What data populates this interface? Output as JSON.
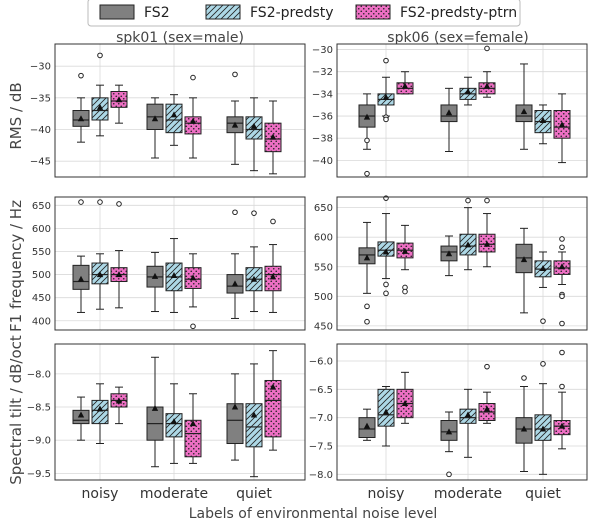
{
  "chart_data": {
    "type": "box",
    "legend": {
      "placement": "top",
      "entries": [
        {
          "name": "FS2",
          "color": "#808080",
          "hatch": "none"
        },
        {
          "name": "FS2-predsty",
          "color": "#add8e6",
          "hatch": "diagonal"
        },
        {
          "name": "FS2-predsty-ptrn",
          "color": "#ee6fc4",
          "hatch": "dots"
        }
      ]
    },
    "column_titles": [
      "spk01 (sex=male)",
      "spk06 (sex=female)"
    ],
    "row_ylabels": [
      "RMS / dB",
      "F1 frequency / Hz",
      "Spectral tilt / dB/oct"
    ],
    "categories": [
      "noisy",
      "moderate",
      "quiet"
    ],
    "xlabel": "Labels of environmental noise level",
    "grid": true,
    "panels": [
      {
        "row": 0,
        "col": 0,
        "ylim": [
          -47.5,
          -26.5
        ],
        "yticks": [
          -45,
          -40,
          -35,
          -30
        ],
        "ytick_labels": [
          "−45",
          "−40",
          "−35",
          "−30"
        ],
        "boxes": [
          [
            {
              "wlo": -42,
              "q1": -39.5,
              "med": -38.5,
              "q3": -37,
              "whi": -35,
              "mean": -38.3,
              "fliers": [
                -31.5
              ]
            },
            {
              "wlo": -41,
              "q1": -38.5,
              "med": -37,
              "q3": -35,
              "whi": -33,
              "mean": -36.5,
              "fliers": [
                -28.3
              ]
            },
            {
              "wlo": -39,
              "q1": -36.5,
              "med": -35.5,
              "q3": -34,
              "whi": -33,
              "mean": -35.3,
              "fliers": []
            }
          ],
          [
            {
              "wlo": -44.5,
              "q1": -40,
              "med": -38,
              "q3": -36,
              "whi": -35,
              "mean": -38.3,
              "fliers": []
            },
            {
              "wlo": -42.5,
              "q1": -40.5,
              "med": -38.5,
              "q3": -36,
              "whi": -34.5,
              "mean": -37.7,
              "fliers": []
            },
            {
              "wlo": -44.5,
              "q1": -40.7,
              "med": -39,
              "q3": -38,
              "whi": -35,
              "mean": -38.7,
              "fliers": [
                -31.8
              ]
            }
          ],
          [
            {
              "wlo": -45.5,
              "q1": -40.5,
              "med": -39,
              "q3": -38,
              "whi": -35.5,
              "mean": -39.3,
              "fliers": [
                -31.3
              ]
            },
            {
              "wlo": -46.5,
              "q1": -41.5,
              "med": -40,
              "q3": -38,
              "whi": -35,
              "mean": -39.5,
              "fliers": []
            },
            {
              "wlo": -47,
              "q1": -43.5,
              "med": -41.5,
              "q3": -39,
              "whi": -35.5,
              "mean": -41.2,
              "fliers": []
            }
          ]
        ]
      },
      {
        "row": 0,
        "col": 1,
        "ylim": [
          -41.5,
          -29.5
        ],
        "yticks": [
          -40,
          -38,
          -36,
          -34,
          -32,
          -30
        ],
        "ytick_labels": [
          "−40",
          "−38",
          "−36",
          "−34",
          "−32",
          "−30"
        ],
        "boxes": [
          [
            {
              "wlo": -39,
              "q1": -37,
              "med": -36,
              "q3": -35,
              "whi": -34,
              "mean": -36.1,
              "fliers": [
                -38.2,
                -41.2
              ]
            },
            {
              "wlo": -36,
              "q1": -35,
              "med": -34.5,
              "q3": -34,
              "whi": -32.5,
              "mean": -34.3,
              "fliers": [
                -31,
                -36.1,
                -36.3
              ]
            },
            {
              "wlo": -34,
              "q1": -34,
              "med": -33.5,
              "q3": -33,
              "whi": -32,
              "mean": -33.3,
              "fliers": []
            }
          ],
          [
            {
              "wlo": -39.2,
              "q1": -36.5,
              "med": -36,
              "q3": -35,
              "whi": -33.5,
              "mean": -35.7,
              "fliers": []
            },
            {
              "wlo": -35,
              "q1": -34.5,
              "med": -34,
              "q3": -33.5,
              "whi": -32.5,
              "mean": -33.8,
              "fliers": []
            },
            {
              "wlo": -34.3,
              "q1": -34,
              "med": -33.5,
              "q3": -33,
              "whi": -32,
              "mean": -33.3,
              "fliers": [
                -29.9
              ]
            }
          ],
          [
            {
              "wlo": -39,
              "q1": -36.5,
              "med": -36,
              "q3": -35,
              "whi": -31.3,
              "mean": -35.6,
              "fliers": []
            },
            {
              "wlo": -38.5,
              "q1": -37.5,
              "med": -36.5,
              "q3": -35.5,
              "whi": -35,
              "mean": -36.4,
              "fliers": []
            },
            {
              "wlo": -40.2,
              "q1": -38,
              "med": -37,
              "q3": -35.5,
              "whi": -34,
              "mean": -36.8,
              "fliers": []
            }
          ]
        ]
      },
      {
        "row": 1,
        "col": 0,
        "ylim": [
          380,
          668
        ],
        "yticks": [
          400,
          450,
          500,
          550,
          600,
          650
        ],
        "ytick_labels": [
          "400",
          "450",
          "500",
          "550",
          "600",
          "650"
        ],
        "boxes": [
          [
            {
              "wlo": 418,
              "q1": 468,
              "med": 485,
              "q3": 520,
              "whi": 540,
              "mean": 490,
              "fliers": [
                657
              ]
            },
            {
              "wlo": 425,
              "q1": 480,
              "med": 500,
              "q3": 525,
              "whi": 545,
              "mean": 500,
              "fliers": [
                657
              ]
            },
            {
              "wlo": 428,
              "q1": 485,
              "med": 500,
              "q3": 515,
              "whi": 552,
              "mean": 500,
              "fliers": [
                653
              ]
            }
          ],
          [
            {
              "wlo": 420,
              "q1": 473,
              "med": 495,
              "q3": 518,
              "whi": 548,
              "mean": 496,
              "fliers": []
            },
            {
              "wlo": 418,
              "q1": 465,
              "med": 495,
              "q3": 525,
              "whi": 578,
              "mean": 498,
              "fliers": []
            },
            {
              "wlo": 430,
              "q1": 470,
              "med": 490,
              "q3": 515,
              "whi": 545,
              "mean": 493,
              "fliers": [
                388
              ]
            }
          ],
          [
            {
              "wlo": 405,
              "q1": 460,
              "med": 475,
              "q3": 500,
              "whi": 545,
              "mean": 480,
              "fliers": [
                635
              ]
            },
            {
              "wlo": 420,
              "q1": 465,
              "med": 490,
              "q3": 515,
              "whi": 560,
              "mean": 490,
              "fliers": [
                633
              ]
            },
            {
              "wlo": 418,
              "q1": 465,
              "med": 500,
              "q3": 518,
              "whi": 565,
              "mean": 495,
              "fliers": [
                615
              ]
            }
          ]
        ]
      },
      {
        "row": 1,
        "col": 1,
        "ylim": [
          443,
          668
        ],
        "yticks": [
          450,
          500,
          550,
          600,
          650
        ],
        "ytick_labels": [
          "450",
          "500",
          "550",
          "600",
          "650"
        ],
        "boxes": [
          [
            {
              "wlo": 505,
              "q1": 555,
              "med": 570,
              "q3": 582,
              "whi": 625,
              "mean": 565,
              "fliers": [
                483,
                457
              ]
            },
            {
              "wlo": 530,
              "q1": 568,
              "med": 578,
              "q3": 592,
              "whi": 640,
              "mean": 575,
              "fliers": [
                666,
                520,
                505
              ]
            },
            {
              "wlo": 545,
              "q1": 565,
              "med": 578,
              "q3": 590,
              "whi": 620,
              "mean": 576,
              "fliers": [
                515,
                508
              ]
            }
          ],
          [
            {
              "wlo": 535,
              "q1": 560,
              "med": 575,
              "q3": 585,
              "whi": 602,
              "mean": 572,
              "fliers": []
            },
            {
              "wlo": 545,
              "q1": 570,
              "med": 585,
              "q3": 605,
              "whi": 650,
              "mean": 587,
              "fliers": [
                662
              ]
            },
            {
              "wlo": 550,
              "q1": 575,
              "med": 588,
              "q3": 605,
              "whi": 640,
              "mean": 588,
              "fliers": [
                662
              ]
            }
          ],
          [
            {
              "wlo": 472,
              "q1": 540,
              "med": 565,
              "q3": 588,
              "whi": 615,
              "mean": 562,
              "fliers": []
            },
            {
              "wlo": 515,
              "q1": 533,
              "med": 546,
              "q3": 560,
              "whi": 575,
              "mean": 547,
              "fliers": [
                458
              ]
            },
            {
              "wlo": 520,
              "q1": 537,
              "med": 548,
              "q3": 560,
              "whi": 575,
              "mean": 550,
              "fliers": [
                597,
                583,
                503,
                500,
                454
              ]
            }
          ]
        ]
      },
      {
        "row": 2,
        "col": 0,
        "ylim": [
          -9.6,
          -7.55
        ],
        "yticks": [
          -9.5,
          -9.0,
          -8.5,
          -8.0
        ],
        "ytick_labels": [
          "−9.5",
          "−9.0",
          "−8.5",
          "−8.0"
        ],
        "boxes": [
          [
            {
              "wlo": -9.0,
              "q1": -8.75,
              "med": -8.7,
              "q3": -8.55,
              "whi": -8.35,
              "mean": -8.62,
              "fliers": []
            },
            {
              "wlo": -9.05,
              "q1": -8.75,
              "med": -8.55,
              "q3": -8.4,
              "whi": -8.15,
              "mean": -8.53,
              "fliers": []
            },
            {
              "wlo": -8.75,
              "q1": -8.5,
              "med": -8.4,
              "q3": -8.3,
              "whi": -8.2,
              "mean": -8.41,
              "fliers": []
            }
          ],
          [
            {
              "wlo": -9.4,
              "q1": -9.0,
              "med": -8.75,
              "q3": -8.5,
              "whi": -7.75,
              "mean": -8.52,
              "fliers": []
            },
            {
              "wlo": -9.35,
              "q1": -8.95,
              "med": -8.75,
              "q3": -8.6,
              "whi": -8.15,
              "mean": -8.72,
              "fliers": []
            },
            {
              "wlo": -9.35,
              "q1": -9.25,
              "med": -8.9,
              "q3": -8.7,
              "whi": -8.3,
              "mean": -8.75,
              "fliers": []
            }
          ],
          [
            {
              "wlo": -9.3,
              "q1": -9.05,
              "med": -8.7,
              "q3": -8.45,
              "whi": -8.0,
              "mean": -8.5,
              "fliers": []
            },
            {
              "wlo": -9.55,
              "q1": -9.1,
              "med": -8.8,
              "q3": -8.45,
              "whi": -7.85,
              "mean": -8.62,
              "fliers": []
            },
            {
              "wlo": -9.15,
              "q1": -8.95,
              "med": -8.4,
              "q3": -8.1,
              "whi": -7.65,
              "mean": -8.2,
              "fliers": []
            }
          ]
        ]
      },
      {
        "row": 2,
        "col": 1,
        "ylim": [
          -8.1,
          -5.7
        ],
        "yticks": [
          -8.0,
          -7.5,
          -7.0,
          -6.5,
          -6.0
        ],
        "ytick_labels": [
          "−8.0",
          "−7.5",
          "−7.0",
          "−6.5",
          "−6.0"
        ],
        "boxes": [
          [
            {
              "wlo": -7.4,
              "q1": -7.35,
              "med": -7.2,
              "q3": -7.0,
              "whi": -6.85,
              "mean": -7.15,
              "fliers": []
            },
            {
              "wlo": -7.5,
              "q1": -7.15,
              "med": -6.95,
              "q3": -6.5,
              "whi": -6.45,
              "mean": -6.9,
              "fliers": []
            },
            {
              "wlo": -7.1,
              "q1": -7.0,
              "med": -6.75,
              "q3": -6.5,
              "whi": -6.2,
              "mean": -6.75,
              "fliers": []
            }
          ],
          [
            {
              "wlo": -7.6,
              "q1": -7.4,
              "med": -7.25,
              "q3": -7.05,
              "whi": -6.9,
              "mean": -7.25,
              "fliers": [
                -8.0
              ]
            },
            {
              "wlo": -7.7,
              "q1": -7.1,
              "med": -7.0,
              "q3": -6.85,
              "whi": -6.5,
              "mean": -6.95,
              "fliers": []
            },
            {
              "wlo": -7.1,
              "q1": -7.05,
              "med": -6.9,
              "q3": -6.75,
              "whi": -6.55,
              "mean": -6.85,
              "fliers": [
                -6.1
              ]
            }
          ],
          [
            {
              "wlo": -7.95,
              "q1": -7.45,
              "med": -7.2,
              "q3": -7.0,
              "whi": -6.45,
              "mean": -7.2,
              "fliers": [
                -6.3
              ]
            },
            {
              "wlo": -8.0,
              "q1": -7.4,
              "med": -7.2,
              "q3": -6.95,
              "whi": -6.4,
              "mean": -7.2,
              "fliers": [
                -6.05
              ]
            },
            {
              "wlo": -7.55,
              "q1": -7.3,
              "med": -7.15,
              "q3": -7.05,
              "whi": -6.55,
              "mean": -7.15,
              "fliers": [
                -6.45,
                -5.85
              ]
            }
          ]
        ]
      }
    ]
  }
}
